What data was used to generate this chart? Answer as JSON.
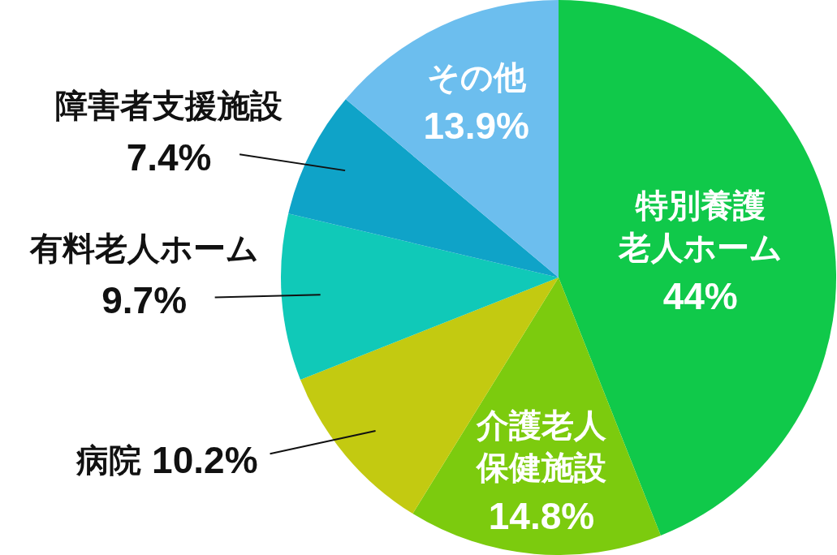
{
  "chart_data": {
    "type": "pie",
    "categories": [
      "特別養護老人ホーム",
      "介護老人保健施設",
      "病院",
      "有料老人ホーム",
      "障害者支援施設",
      "その他"
    ],
    "values": [
      44,
      14.8,
      10.2,
      9.7,
      7.4,
      13.9
    ],
    "colors": [
      "#10c94a",
      "#7ccb0e",
      "#c3ca11",
      "#10c9b8",
      "#0fa3c8",
      "#6cbeee"
    ],
    "value_labels": [
      "44%",
      "14.8%",
      "10.2%",
      "9.7%",
      "7.4%",
      "13.9%"
    ]
  }
}
